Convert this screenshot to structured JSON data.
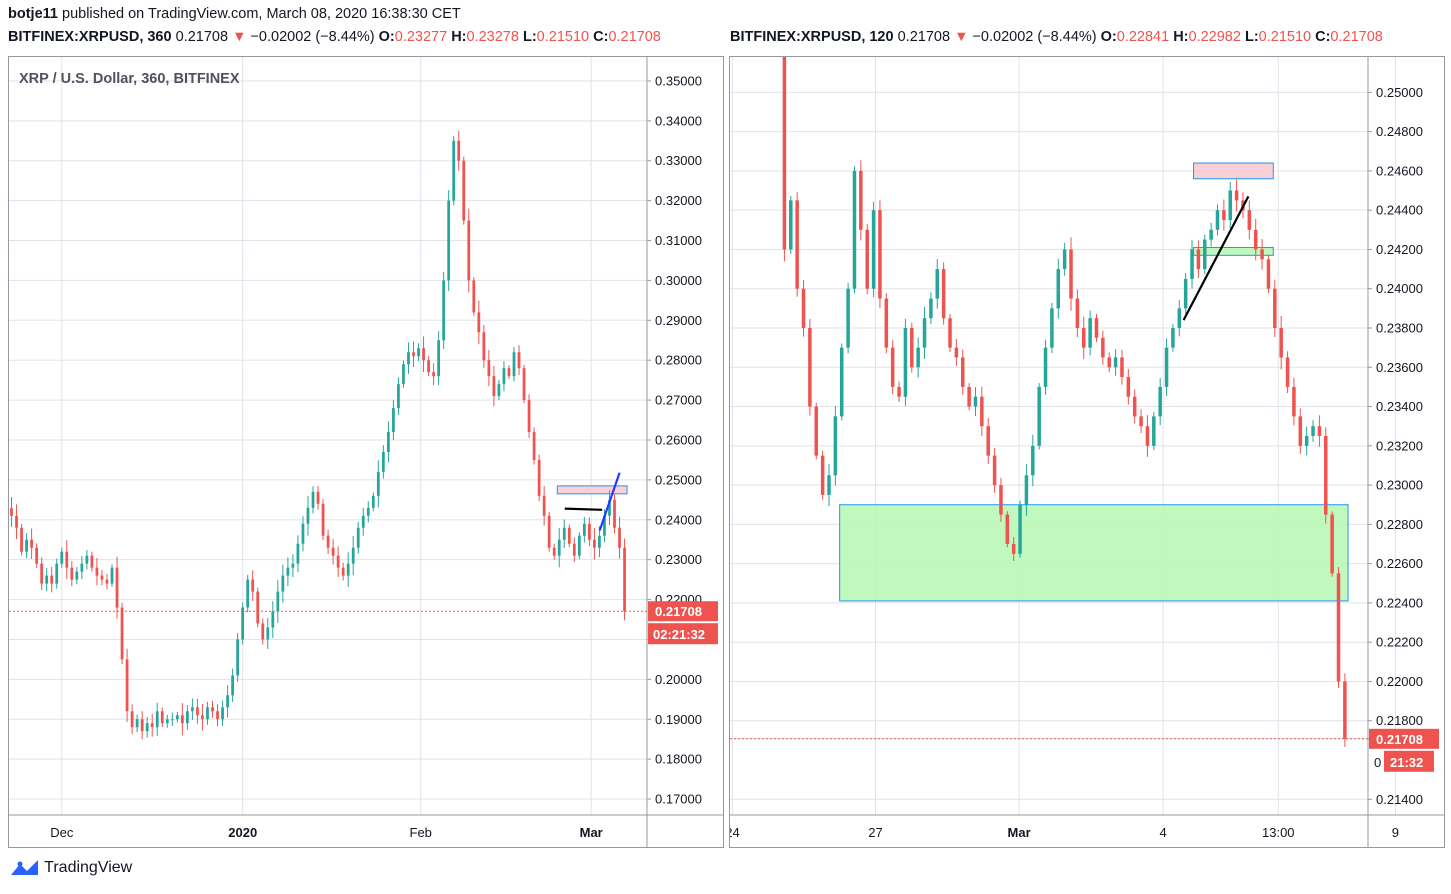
{
  "header": {
    "author": "botje11",
    "published_text": "published on TradingView.com, March 08, 2020 16:38:30 CET"
  },
  "colors": {
    "up": "#26a69a",
    "down": "#ef5350",
    "zone_red": "#f8c8cf",
    "zone_green": "#b6f7b1",
    "zone_border": "#2196f3",
    "grid": "#e0e3eb"
  },
  "left": {
    "symbol": "BITFINEX:XRPUSD, 360",
    "last": "0.21708",
    "change": "−0.02002 (−8.44%)",
    "o": "0.23277",
    "h": "0.23278",
    "l": "0.21510",
    "c": "0.21708",
    "watermark": "XRP / U.S. Dollar, 360, BITFINEX",
    "price_tag": "0.21708",
    "countdown": "02:21:32"
  },
  "right": {
    "symbol": "BITFINEX:XRPUSD, 120",
    "last": "0.21708",
    "change": "−0.02002 (−8.44%)",
    "o": "0.22841",
    "h": "0.22982",
    "l": "0.21510",
    "c": "0.21708",
    "price_tag": "0.21708",
    "countdown": "21:32",
    "countdown_prefix": "0"
  },
  "footer": {
    "brand": "TradingView"
  },
  "chart_data": [
    {
      "type": "candlestick",
      "title": "XRP / U.S. Dollar, 360, BITFINEX",
      "timeframe": "360",
      "ylim": [
        0.166,
        0.356
      ],
      "y_ticks": [
        "0.35000",
        "0.34000",
        "0.33000",
        "0.32000",
        "0.31000",
        "0.30000",
        "0.29000",
        "0.28000",
        "0.27000",
        "0.26000",
        "0.25000",
        "0.24000",
        "0.23000",
        "0.22000",
        "0.21000",
        "0.20000",
        "0.19000",
        "0.18000",
        "0.17000"
      ],
      "x_ticks": [
        "Dec",
        "2020",
        "Feb",
        "Mar"
      ],
      "last_price": 0.21708,
      "x_range": [
        0,
        128
      ],
      "x_tick_positions": [
        10.6,
        46.9,
        82.6,
        116.8
      ],
      "closes": [
        0.241,
        0.238,
        0.232,
        0.235,
        0.233,
        0.229,
        0.224,
        0.226,
        0.224,
        0.229,
        0.232,
        0.228,
        0.225,
        0.227,
        0.229,
        0.231,
        0.228,
        0.226,
        0.225,
        0.224,
        0.228,
        0.218,
        0.205,
        0.192,
        0.188,
        0.19,
        0.187,
        0.189,
        0.188,
        0.192,
        0.189,
        0.19,
        0.19,
        0.191,
        0.189,
        0.192,
        0.193,
        0.191,
        0.19,
        0.193,
        0.192,
        0.19,
        0.193,
        0.196,
        0.201,
        0.21,
        0.218,
        0.225,
        0.222,
        0.214,
        0.21,
        0.213,
        0.217,
        0.222,
        0.226,
        0.228,
        0.229,
        0.234,
        0.239,
        0.243,
        0.247,
        0.244,
        0.236,
        0.233,
        0.231,
        0.228,
        0.226,
        0.229,
        0.233,
        0.238,
        0.241,
        0.243,
        0.246,
        0.252,
        0.257,
        0.262,
        0.268,
        0.274,
        0.279,
        0.282,
        0.281,
        0.283,
        0.28,
        0.277,
        0.276,
        0.285,
        0.3,
        0.32,
        0.335,
        0.33,
        0.315,
        0.3,
        0.292,
        0.287,
        0.28,
        0.276,
        0.271,
        0.274,
        0.278,
        0.276,
        0.282,
        0.278,
        0.27,
        0.262,
        0.255,
        0.246,
        0.241,
        0.233,
        0.231,
        0.235,
        0.238,
        0.234,
        0.231,
        0.236,
        0.239,
        0.235,
        0.233,
        0.236,
        0.241,
        0.245,
        0.238,
        0.233,
        0.21708
      ],
      "annotations": [
        {
          "type": "rectangle",
          "color": "red",
          "x": [
            110,
            124
          ],
          "y": [
            0.2465,
            0.2485
          ]
        },
        {
          "type": "trendline",
          "color": "black",
          "x": [
            111.5,
            119
          ],
          "y": [
            0.2428,
            0.2425
          ]
        },
        {
          "type": "trendline",
          "color": "blue",
          "x": [
            118.5,
            122.5
          ],
          "y": [
            0.2373,
            0.2518
          ]
        }
      ]
    },
    {
      "type": "candlestick",
      "title": "BITFINEX:XRPUSD, 120",
      "timeframe": "120",
      "ylim": [
        0.2132,
        0.2518
      ],
      "y_ticks": [
        "0.25000",
        "0.24800",
        "0.24600",
        "0.24400",
        "0.24200",
        "0.24000",
        "0.23800",
        "0.23600",
        "0.23400",
        "0.23200",
        "0.23000",
        "0.22800",
        "0.22600",
        "0.22400",
        "0.22200",
        "0.22000",
        "0.21800",
        "0.21708",
        "0.21400"
      ],
      "x_ticks": [
        "24",
        "27",
        "Mar",
        "4",
        "13:00",
        "9"
      ],
      "last_price": 0.21708,
      "x_range": [
        0,
        128
      ],
      "x_tick_positions": [
        0.5,
        29.2,
        58.0,
        86.9,
        110.0,
        133.5
      ],
      "closes": [
        0.2535,
        0.242,
        0.2445,
        0.24,
        0.238,
        0.234,
        0.2315,
        0.2295,
        0.2305,
        0.2335,
        0.237,
        0.24,
        0.246,
        0.243,
        0.24,
        0.244,
        0.2395,
        0.237,
        0.235,
        0.2345,
        0.238,
        0.236,
        0.237,
        0.2385,
        0.2395,
        0.241,
        0.2385,
        0.237,
        0.2365,
        0.235,
        0.234,
        0.2345,
        0.233,
        0.2315,
        0.23,
        0.2285,
        0.227,
        0.2265,
        0.229,
        0.2305,
        0.232,
        0.235,
        0.237,
        0.239,
        0.241,
        0.242,
        0.2395,
        0.238,
        0.237,
        0.2385,
        0.2375,
        0.2365,
        0.236,
        0.2365,
        0.2355,
        0.2345,
        0.2335,
        0.233,
        0.232,
        0.2335,
        0.235,
        0.237,
        0.238,
        0.239,
        0.2405,
        0.242,
        0.241,
        0.2425,
        0.243,
        0.244,
        0.2435,
        0.245,
        0.2445,
        0.244,
        0.243,
        0.242,
        0.2415,
        0.24,
        0.238,
        0.2365,
        0.235,
        0.2335,
        0.232,
        0.2325,
        0.233,
        0.2325,
        0.2285,
        0.2255,
        0.22,
        0.21708
      ],
      "annotations": [
        {
          "type": "rectangle",
          "color": "green",
          "x": [
            22,
            124
          ],
          "y": [
            0.2241,
            0.229
          ]
        },
        {
          "type": "rectangle",
          "color": "red",
          "x": [
            93,
            109
          ],
          "y": [
            0.2456,
            0.2464
          ]
        },
        {
          "type": "rectangle",
          "color": "green",
          "x": [
            93,
            109
          ],
          "y": [
            0.2417,
            0.2421
          ]
        },
        {
          "type": "trendline",
          "color": "black",
          "x": [
            91,
            104
          ],
          "y": [
            0.2384,
            0.2447
          ]
        }
      ]
    }
  ]
}
